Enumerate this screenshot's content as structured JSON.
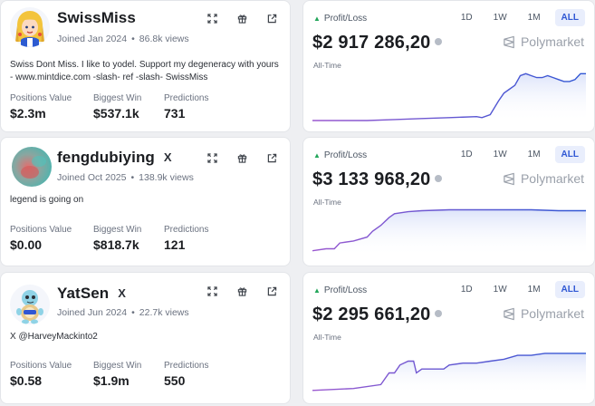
{
  "colors": {
    "accent": "#2f57d4",
    "profit_green": "#22a65a",
    "chart_line_start": "#9b59d0",
    "chart_line_end": "#2f57d4",
    "chart_fill": "#dde4fa"
  },
  "icons": {
    "action_1": "expand-icon",
    "action_2": "gift-icon",
    "action_3": "external-link-icon",
    "brand": "polymarket-logo-icon",
    "info": "info-icon"
  },
  "traders": [
    {
      "username": "SwissMiss",
      "verified_x": false,
      "joined": "Joined Jan 2024",
      "views": "86.8k views",
      "bio": "Swiss Dont Miss. I like to yodel. Support my degeneracy with yours - www.mintdice.com -slash- ref -slash- SwissMiss",
      "stats": [
        {
          "label": "Positions Value",
          "value": "$2.3m"
        },
        {
          "label": "Biggest Win",
          "value": "$537.1k"
        },
        {
          "label": "Predictions",
          "value": "731"
        }
      ],
      "pl_label": "Profit/Loss",
      "pl_value": "$2 917 286,20",
      "period_label": "All-Time",
      "ranges": [
        "1D",
        "1W",
        "1M",
        "ALL"
      ],
      "active_range": "ALL",
      "brand": "Polymarket",
      "chart_data": {
        "type": "area",
        "x": [
          0,
          10,
          20,
          30,
          40,
          50,
          60,
          62,
          65,
          68,
          70,
          72,
          74,
          76,
          78,
          80,
          82,
          84,
          86,
          88,
          90,
          92,
          94,
          96,
          98,
          100
        ],
        "values": [
          0,
          0,
          0,
          0.5,
          1,
          1.5,
          2,
          1.5,
          3,
          10,
          14,
          16,
          18,
          23,
          24,
          23,
          22,
          22,
          23,
          22,
          21,
          20,
          20,
          21,
          24,
          24
        ],
        "ylim": [
          0,
          26
        ]
      }
    },
    {
      "username": "fengdubiying",
      "verified_x": true,
      "x_mark": "X",
      "joined": "Joined Oct 2025",
      "views": "138.9k views",
      "bio": "legend is going on",
      "stats": [
        {
          "label": "Positions Value",
          "value": "$0.00"
        },
        {
          "label": "Biggest Win",
          "value": "$818.7k"
        },
        {
          "label": "Predictions",
          "value": "121"
        }
      ],
      "pl_label": "Profit/Loss",
      "pl_value": "$3 133 968,20",
      "period_label": "All-Time",
      "ranges": [
        "1D",
        "1W",
        "1M",
        "ALL"
      ],
      "active_range": "ALL",
      "brand": "Polymarket",
      "chart_data": {
        "type": "area",
        "x": [
          0,
          5,
          8,
          10,
          15,
          20,
          22,
          25,
          28,
          30,
          35,
          40,
          50,
          60,
          70,
          80,
          90,
          100
        ],
        "values": [
          2,
          3,
          3,
          6,
          7,
          9,
          12,
          15,
          19,
          21,
          22,
          22.5,
          23,
          23,
          23,
          23,
          22.5,
          22.5
        ],
        "ylim": [
          0,
          26
        ]
      }
    },
    {
      "username": "YatSen",
      "verified_x": true,
      "x_mark": "X",
      "joined": "Joined Jun 2024",
      "views": "22.7k views",
      "bio": "X @HarveyMackinto2",
      "stats": [
        {
          "label": "Positions Value",
          "value": "$0.58"
        },
        {
          "label": "Biggest Win",
          "value": "$1.9m"
        },
        {
          "label": "Predictions",
          "value": "550"
        }
      ],
      "pl_label": "Profit/Loss",
      "pl_value": "$2 295 661,20",
      "period_label": "All-Time",
      "ranges": [
        "1D",
        "1W",
        "1M",
        "ALL"
      ],
      "active_range": "ALL",
      "brand": "Polymarket",
      "chart_data": {
        "type": "area",
        "x": [
          0,
          15,
          25,
          28,
          30,
          32,
          35,
          37,
          38,
          40,
          42,
          45,
          48,
          50,
          55,
          60,
          65,
          70,
          75,
          80,
          85,
          90,
          95,
          100
        ],
        "values": [
          1,
          2,
          4,
          10,
          10,
          14,
          16,
          16,
          10,
          12,
          12,
          12,
          12,
          14,
          15,
          15,
          16,
          17,
          19,
          19,
          20,
          20,
          20,
          20
        ],
        "ylim": [
          0,
          26
        ]
      }
    }
  ]
}
